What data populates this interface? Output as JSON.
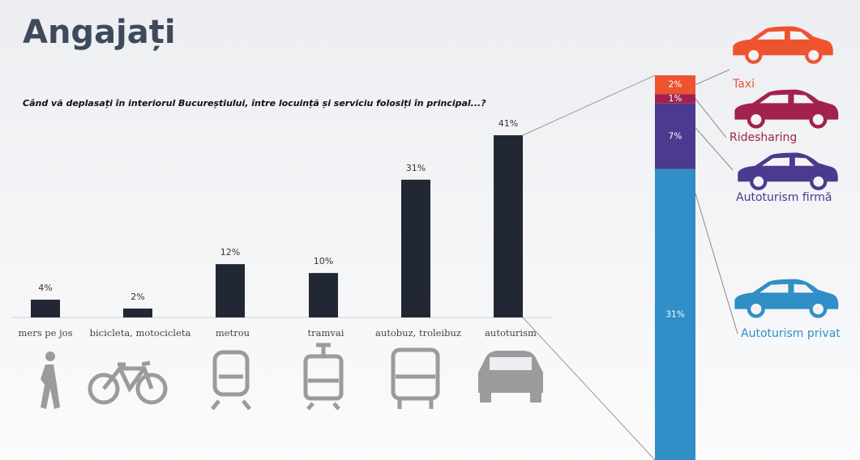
{
  "chart_data": [
    {
      "type": "bar",
      "title": "Angajați",
      "subtitle": "Când vă deplasați în interiorul Bucureștiului, între locuință și serviciu folosiți în principal...?",
      "categories": [
        "mers pe jos",
        "bicicleta, motocicleta",
        "metrou",
        "tramvai",
        "autobuz, troleibuz",
        "autoturism"
      ],
      "values": [
        4,
        2,
        12,
        10,
        31,
        41
      ],
      "value_labels": [
        "4%",
        "2%",
        "12%",
        "10%",
        "31%",
        "41%"
      ],
      "color": "#222833"
    },
    {
      "type": "stacked-bar",
      "series": [
        {
          "name": "Taxi",
          "color": "#ee5330",
          "values": [
            2
          ],
          "value_labels": [
            "2%"
          ]
        },
        {
          "name": "Ridesharing",
          "color": "#a3214f",
          "values": [
            1
          ],
          "value_labels": [
            "1%"
          ]
        },
        {
          "name": "Autoturism firmă",
          "color": "#4b3a8f",
          "values": [
            7
          ],
          "value_labels": [
            "7%"
          ]
        },
        {
          "name": "Autoturism privat",
          "color": "#2f8fc6",
          "values": [
            31
          ],
          "value_labels": [
            "31%"
          ]
        }
      ]
    }
  ]
}
